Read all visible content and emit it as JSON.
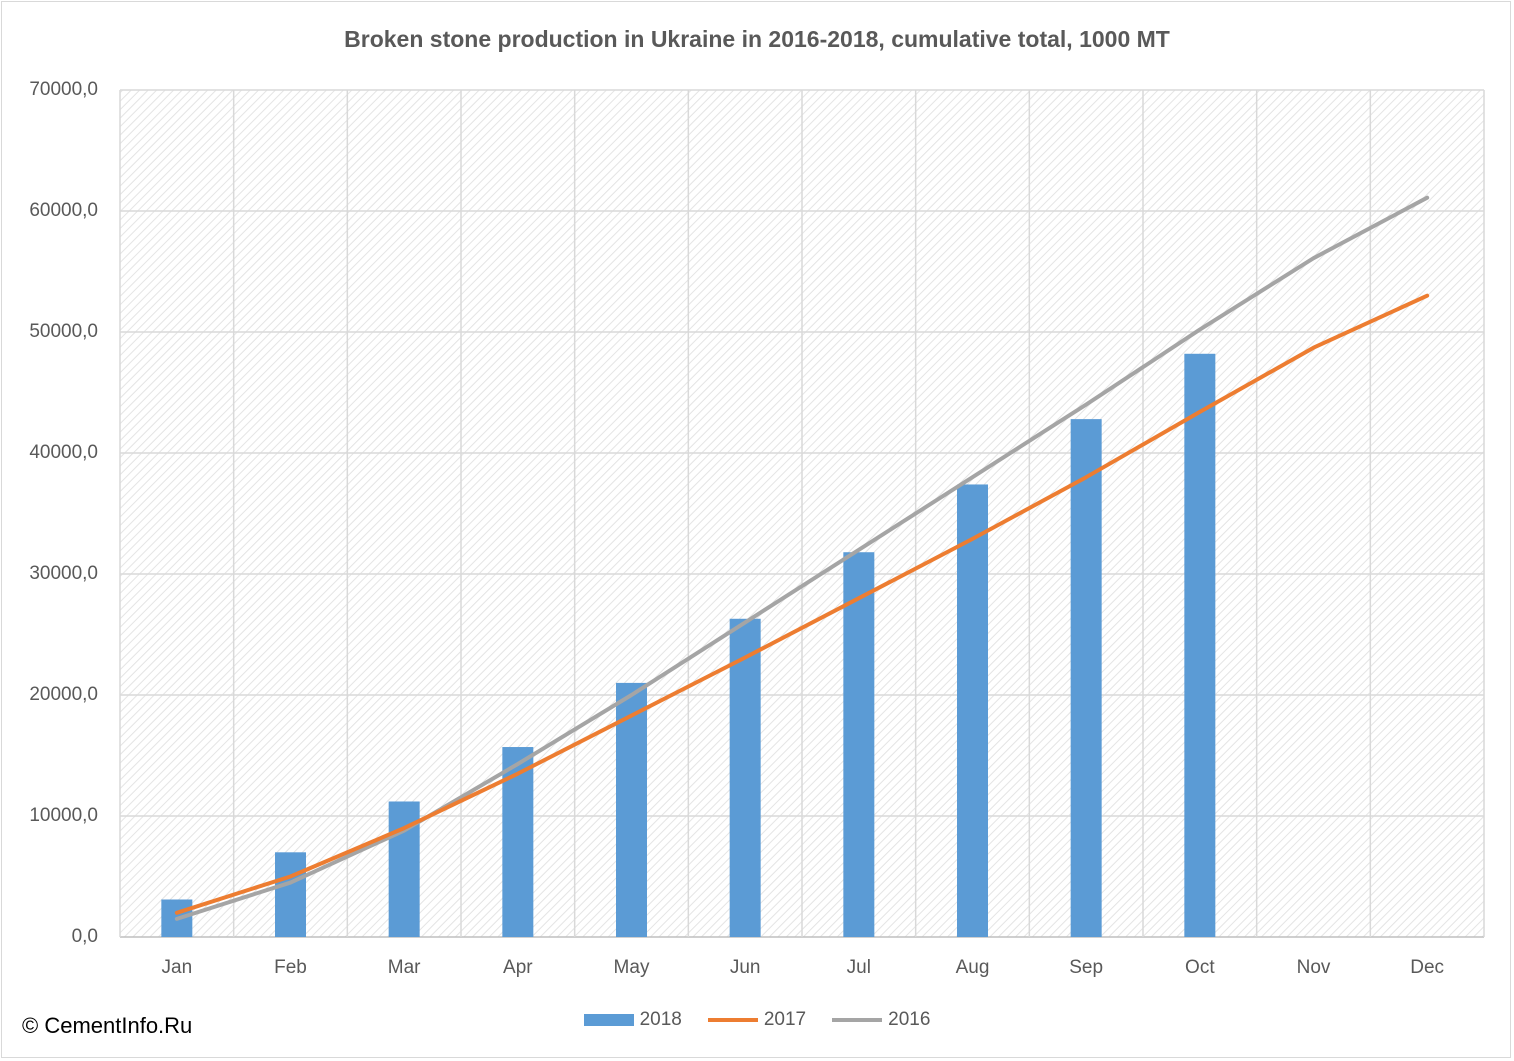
{
  "chart_data": {
    "type": "bar+line",
    "title": "Broken stone production in Ukraine in 2016-2018, cumulative total, 1000 MT",
    "categories": [
      "Jan",
      "Feb",
      "Mar",
      "Apr",
      "May",
      "Jun",
      "Jul",
      "Aug",
      "Sep",
      "Oct",
      "Nov",
      "Dec"
    ],
    "y_ticks": [
      "0,0",
      "10000,0",
      "20000,0",
      "30000,0",
      "40000,0",
      "50000,0",
      "60000,0",
      "70000,0"
    ],
    "ylim": [
      0,
      70000
    ],
    "grid": true,
    "legend_position": "bottom",
    "series": [
      {
        "name": "2018",
        "type": "bar",
        "color": "#5b9bd5",
        "values": [
          3100,
          7000,
          11200,
          15700,
          21000,
          26300,
          31800,
          37400,
          42800,
          48200,
          null,
          null
        ]
      },
      {
        "name": "2017",
        "type": "line",
        "color": "#ed7d31",
        "values": [
          2000,
          5000,
          9000,
          13500,
          18300,
          23100,
          28000,
          32900,
          38000,
          43400,
          48700,
          53000
        ]
      },
      {
        "name": "2016",
        "type": "line",
        "color": "#a5a5a5",
        "values": [
          1500,
          4500,
          8800,
          14300,
          20000,
          26000,
          32000,
          38000,
          44000,
          50200,
          56100,
          61100
        ]
      }
    ]
  },
  "copyright": "© CementInfo.Ru"
}
